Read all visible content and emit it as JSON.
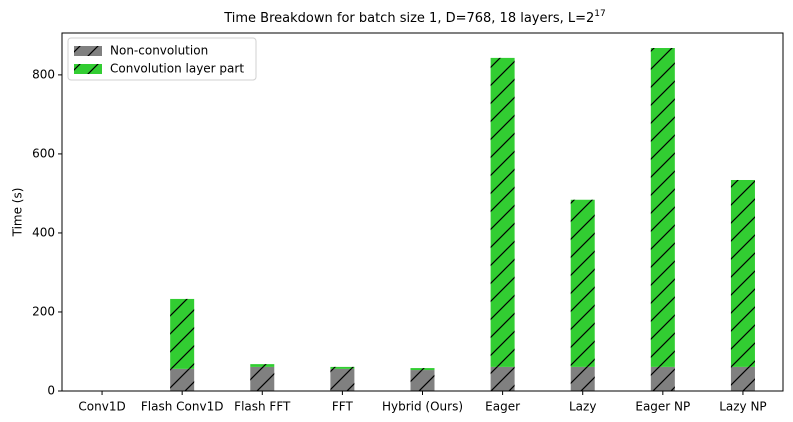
{
  "chart_data": {
    "type": "stacked_bar",
    "title": "Time Breakdown for batch size 1, D=768, 18 layers, L=2",
    "title_superscript": "17",
    "ylabel": "Time (s)",
    "categories": [
      "Conv1D",
      "Flash Conv1D",
      "Flash FFT",
      "FFT",
      "Hybrid (Ours)",
      "Eager",
      "Lazy",
      "Eager NP",
      "Lazy NP"
    ],
    "series": [
      {
        "name": "Non-convolution",
        "color": "#808080",
        "values": [
          0,
          56,
          61,
          56,
          53,
          61,
          61,
          61,
          61
        ]
      },
      {
        "name": "Convolution layer part",
        "color": "#32cd32",
        "values": [
          0,
          177,
          7,
          5,
          5,
          782,
          423,
          807,
          473
        ]
      }
    ],
    "ylim": [
      0,
      906
    ],
    "yticks": [
      0,
      200,
      400,
      600,
      800
    ],
    "hatch": "/",
    "legend": "upper left"
  }
}
